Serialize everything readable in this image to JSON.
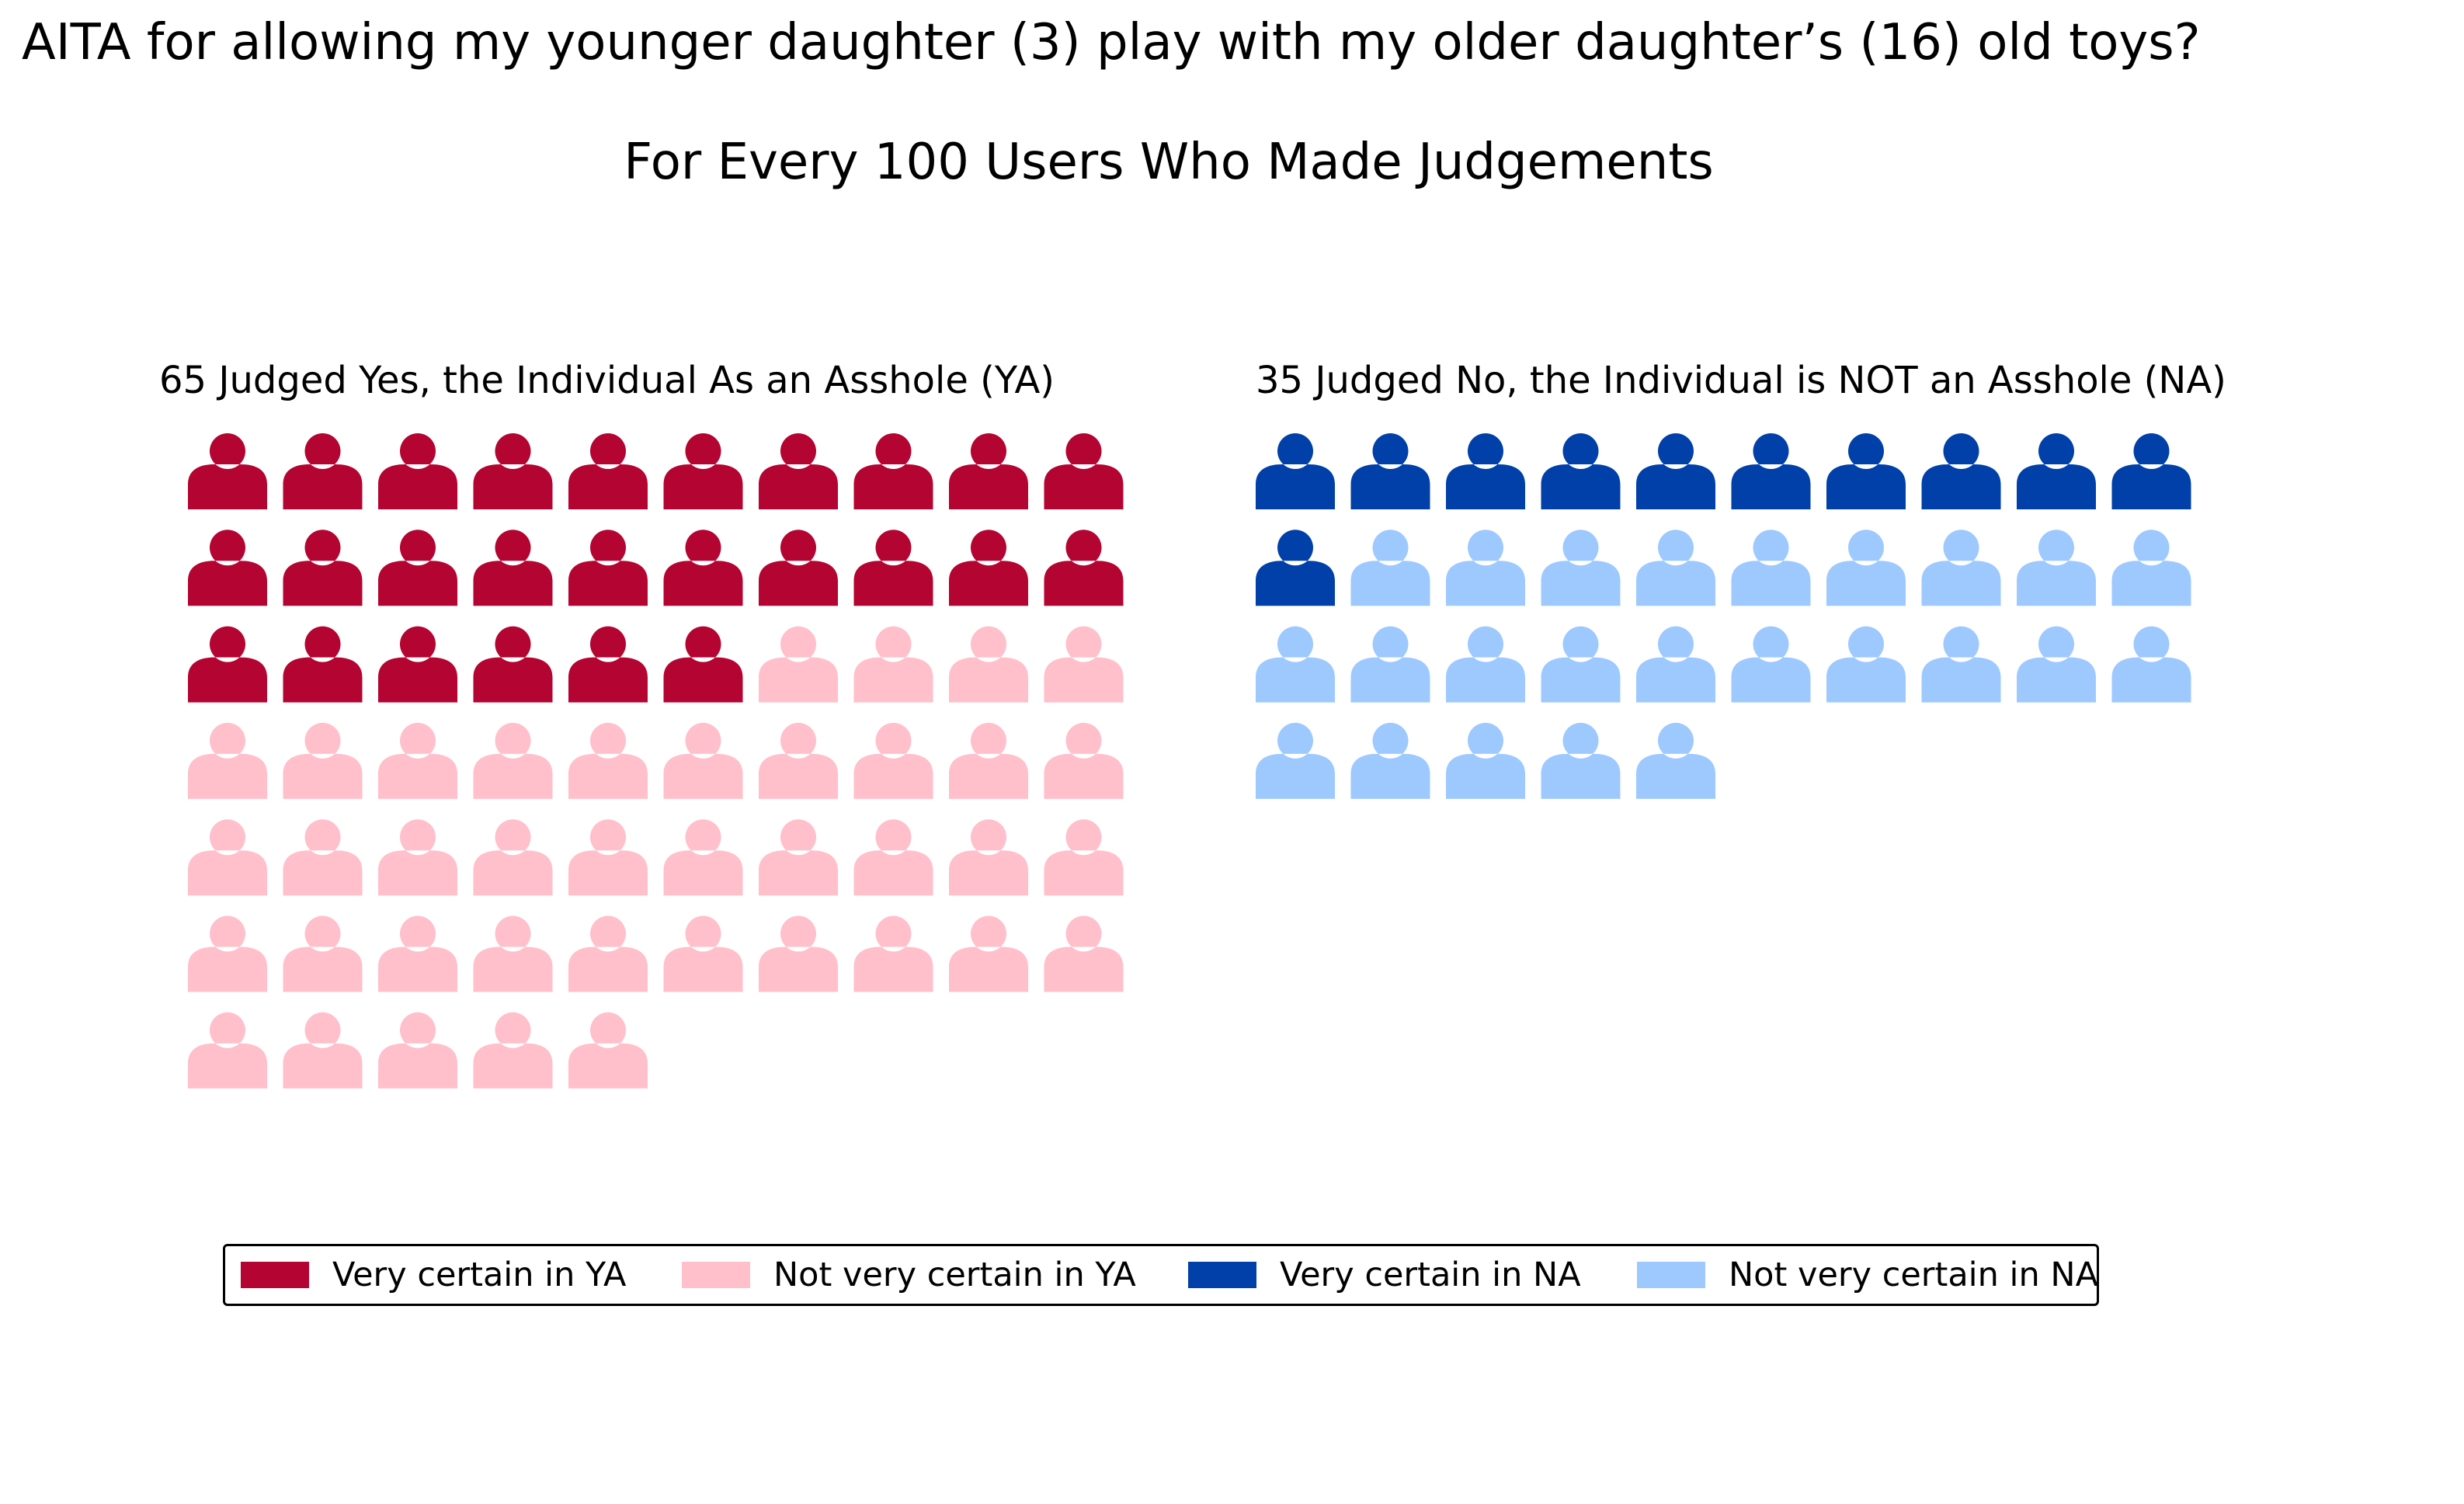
{
  "title": "AITA for allowing my younger daughter (3) play with my older daughter’s (16) old toys?",
  "subtitle": "For Every 100 Users Who Made Judgements",
  "colors": {
    "very_ya": "#b40431",
    "not_ya": "#ffc0cb",
    "very_na": "#0040a8",
    "not_na": "#9ec9ff"
  },
  "chart_data": {
    "type": "waffle",
    "icon": "person-icon",
    "grid_columns": 10,
    "panels": [
      {
        "title": "65 Judged Yes, the Individual As an Asshole (YA)",
        "total": 65,
        "segments": [
          {
            "name": "Very certain in YA",
            "count": 26,
            "color": "#b40431"
          },
          {
            "name": "Not very certain in YA",
            "count": 39,
            "color": "#ffc0cb"
          }
        ]
      },
      {
        "title": "35 Judged No, the Individual is NOT an Asshole (NA)",
        "total": 35,
        "segments": [
          {
            "name": "Very certain in NA",
            "count": 11,
            "color": "#0040a8"
          },
          {
            "name": "Not very certain in NA",
            "count": 24,
            "color": "#9ec9ff"
          }
        ]
      }
    ]
  },
  "legend": {
    "items": [
      {
        "label": "Very certain in YA",
        "color": "#b40431"
      },
      {
        "label": "Not very certain in YA",
        "color": "#ffc0cb"
      },
      {
        "label": "Very certain in NA",
        "color": "#0040a8"
      },
      {
        "label": "Not very certain in NA",
        "color": "#9ec9ff"
      }
    ]
  }
}
